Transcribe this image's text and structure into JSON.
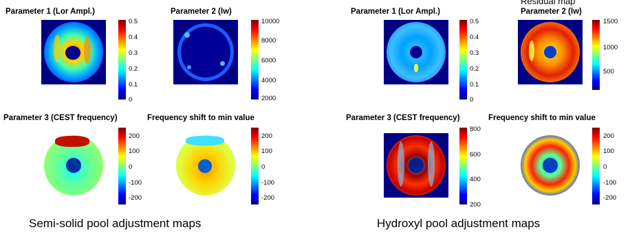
{
  "semi_solid": {
    "p1_title": "Parameter 1 (Lor Ampl.)",
    "p2_title": "Parameter 2 (lw)",
    "p3_title": "Parameter 3 (CEST frequency)",
    "p4_title": "Frequency shift to min value",
    "p1_ticks": [
      "0.5",
      "0.4",
      "0.3",
      "0.2",
      "0.1",
      "0"
    ],
    "p2_ticks": [
      "10000",
      "8000",
      "6000",
      "4000",
      "2000"
    ],
    "p3_ticks": [
      "200",
      "100",
      "0",
      "-100",
      "-200"
    ],
    "p4_ticks": [
      "200",
      "100",
      "0",
      "-100",
      "-200"
    ],
    "caption": "Semi-solid pool adjustment maps"
  },
  "hydroxyl": {
    "overflow_title": "Residual map",
    "p1_title": "Parameter 1 (Lor Ampl.)",
    "p2_title": "Parameter 2 (lw)",
    "p3_title": "Parameter 3 (CEST frequency)",
    "p4_title": "Frequency shift to min value",
    "p1_ticks": [
      "0.5",
      "0.4",
      "0.3",
      "0.2",
      "0.1",
      "0"
    ],
    "p2_ticks": [
      "1500",
      "1000",
      "500"
    ],
    "p3_ticks": [
      "800",
      "600",
      "400",
      "200"
    ],
    "p4_ticks": [
      "200",
      "100",
      "0",
      "-100",
      "-200"
    ],
    "caption": "Hydroxyl pool adjustment maps"
  },
  "colormap": "jet"
}
